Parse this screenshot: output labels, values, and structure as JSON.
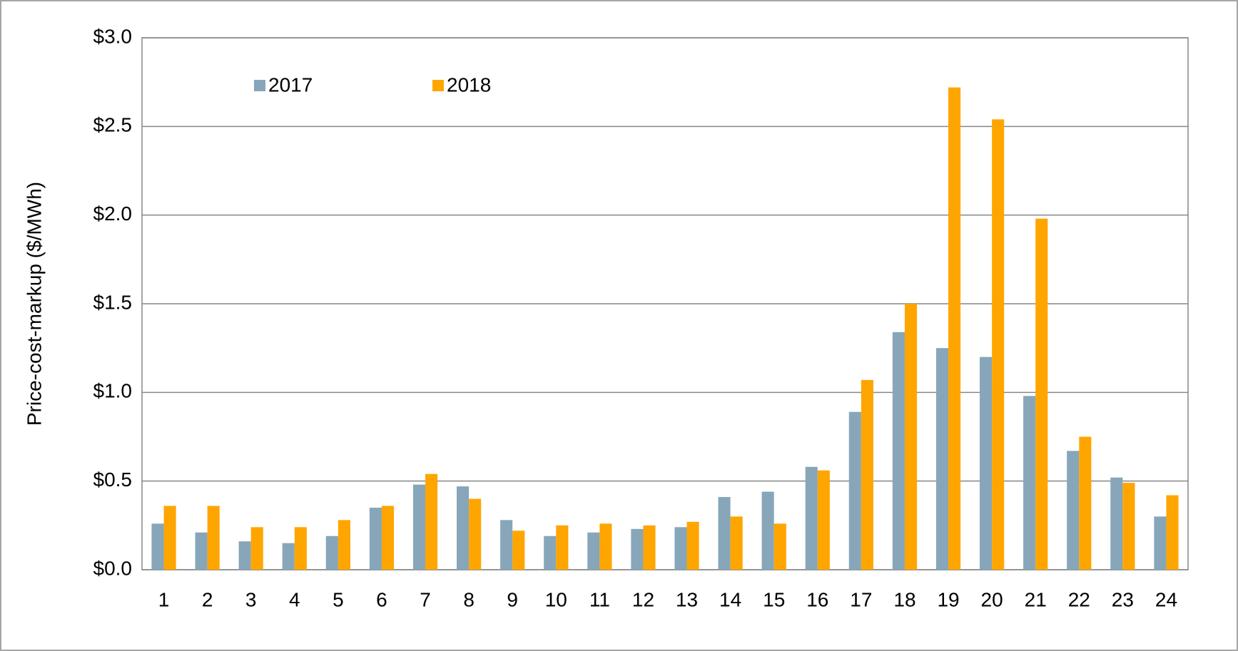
{
  "chart_data": {
    "type": "bar",
    "y_label": "Price-cost-markup ($/MWh)",
    "categories": [
      "1",
      "2",
      "3",
      "4",
      "5",
      "6",
      "7",
      "8",
      "9",
      "10",
      "11",
      "12",
      "13",
      "14",
      "15",
      "16",
      "17",
      "18",
      "19",
      "20",
      "21",
      "22",
      "23",
      "24"
    ],
    "series": [
      {
        "name": "2017",
        "color": "#87a6b9",
        "values": [
          0.26,
          0.21,
          0.16,
          0.15,
          0.19,
          0.35,
          0.48,
          0.47,
          0.28,
          0.19,
          0.21,
          0.23,
          0.24,
          0.41,
          0.44,
          0.58,
          0.89,
          1.34,
          1.25,
          1.2,
          0.98,
          0.67,
          0.52,
          0.3
        ]
      },
      {
        "name": "2018",
        "color": "#ffa500",
        "values": [
          0.36,
          0.36,
          0.24,
          0.24,
          0.28,
          0.36,
          0.54,
          0.4,
          0.22,
          0.25,
          0.26,
          0.25,
          0.27,
          0.3,
          0.26,
          0.56,
          1.07,
          1.5,
          2.72,
          2.54,
          1.98,
          0.75,
          0.49,
          0.42
        ]
      }
    ],
    "ylim": [
      0,
      3
    ],
    "yticks": [
      {
        "value": 0,
        "label": "$0.0"
      },
      {
        "value": 0.5,
        "label": "$0.5"
      },
      {
        "value": 1,
        "label": "$1.0"
      },
      {
        "value": 1.5,
        "label": "$1.5"
      },
      {
        "value": 2,
        "label": "$2.0"
      },
      {
        "value": 2.5,
        "label": "$2.5"
      },
      {
        "value": 3,
        "label": "$3.0"
      }
    ],
    "grid": true,
    "legend": "top-left"
  }
}
